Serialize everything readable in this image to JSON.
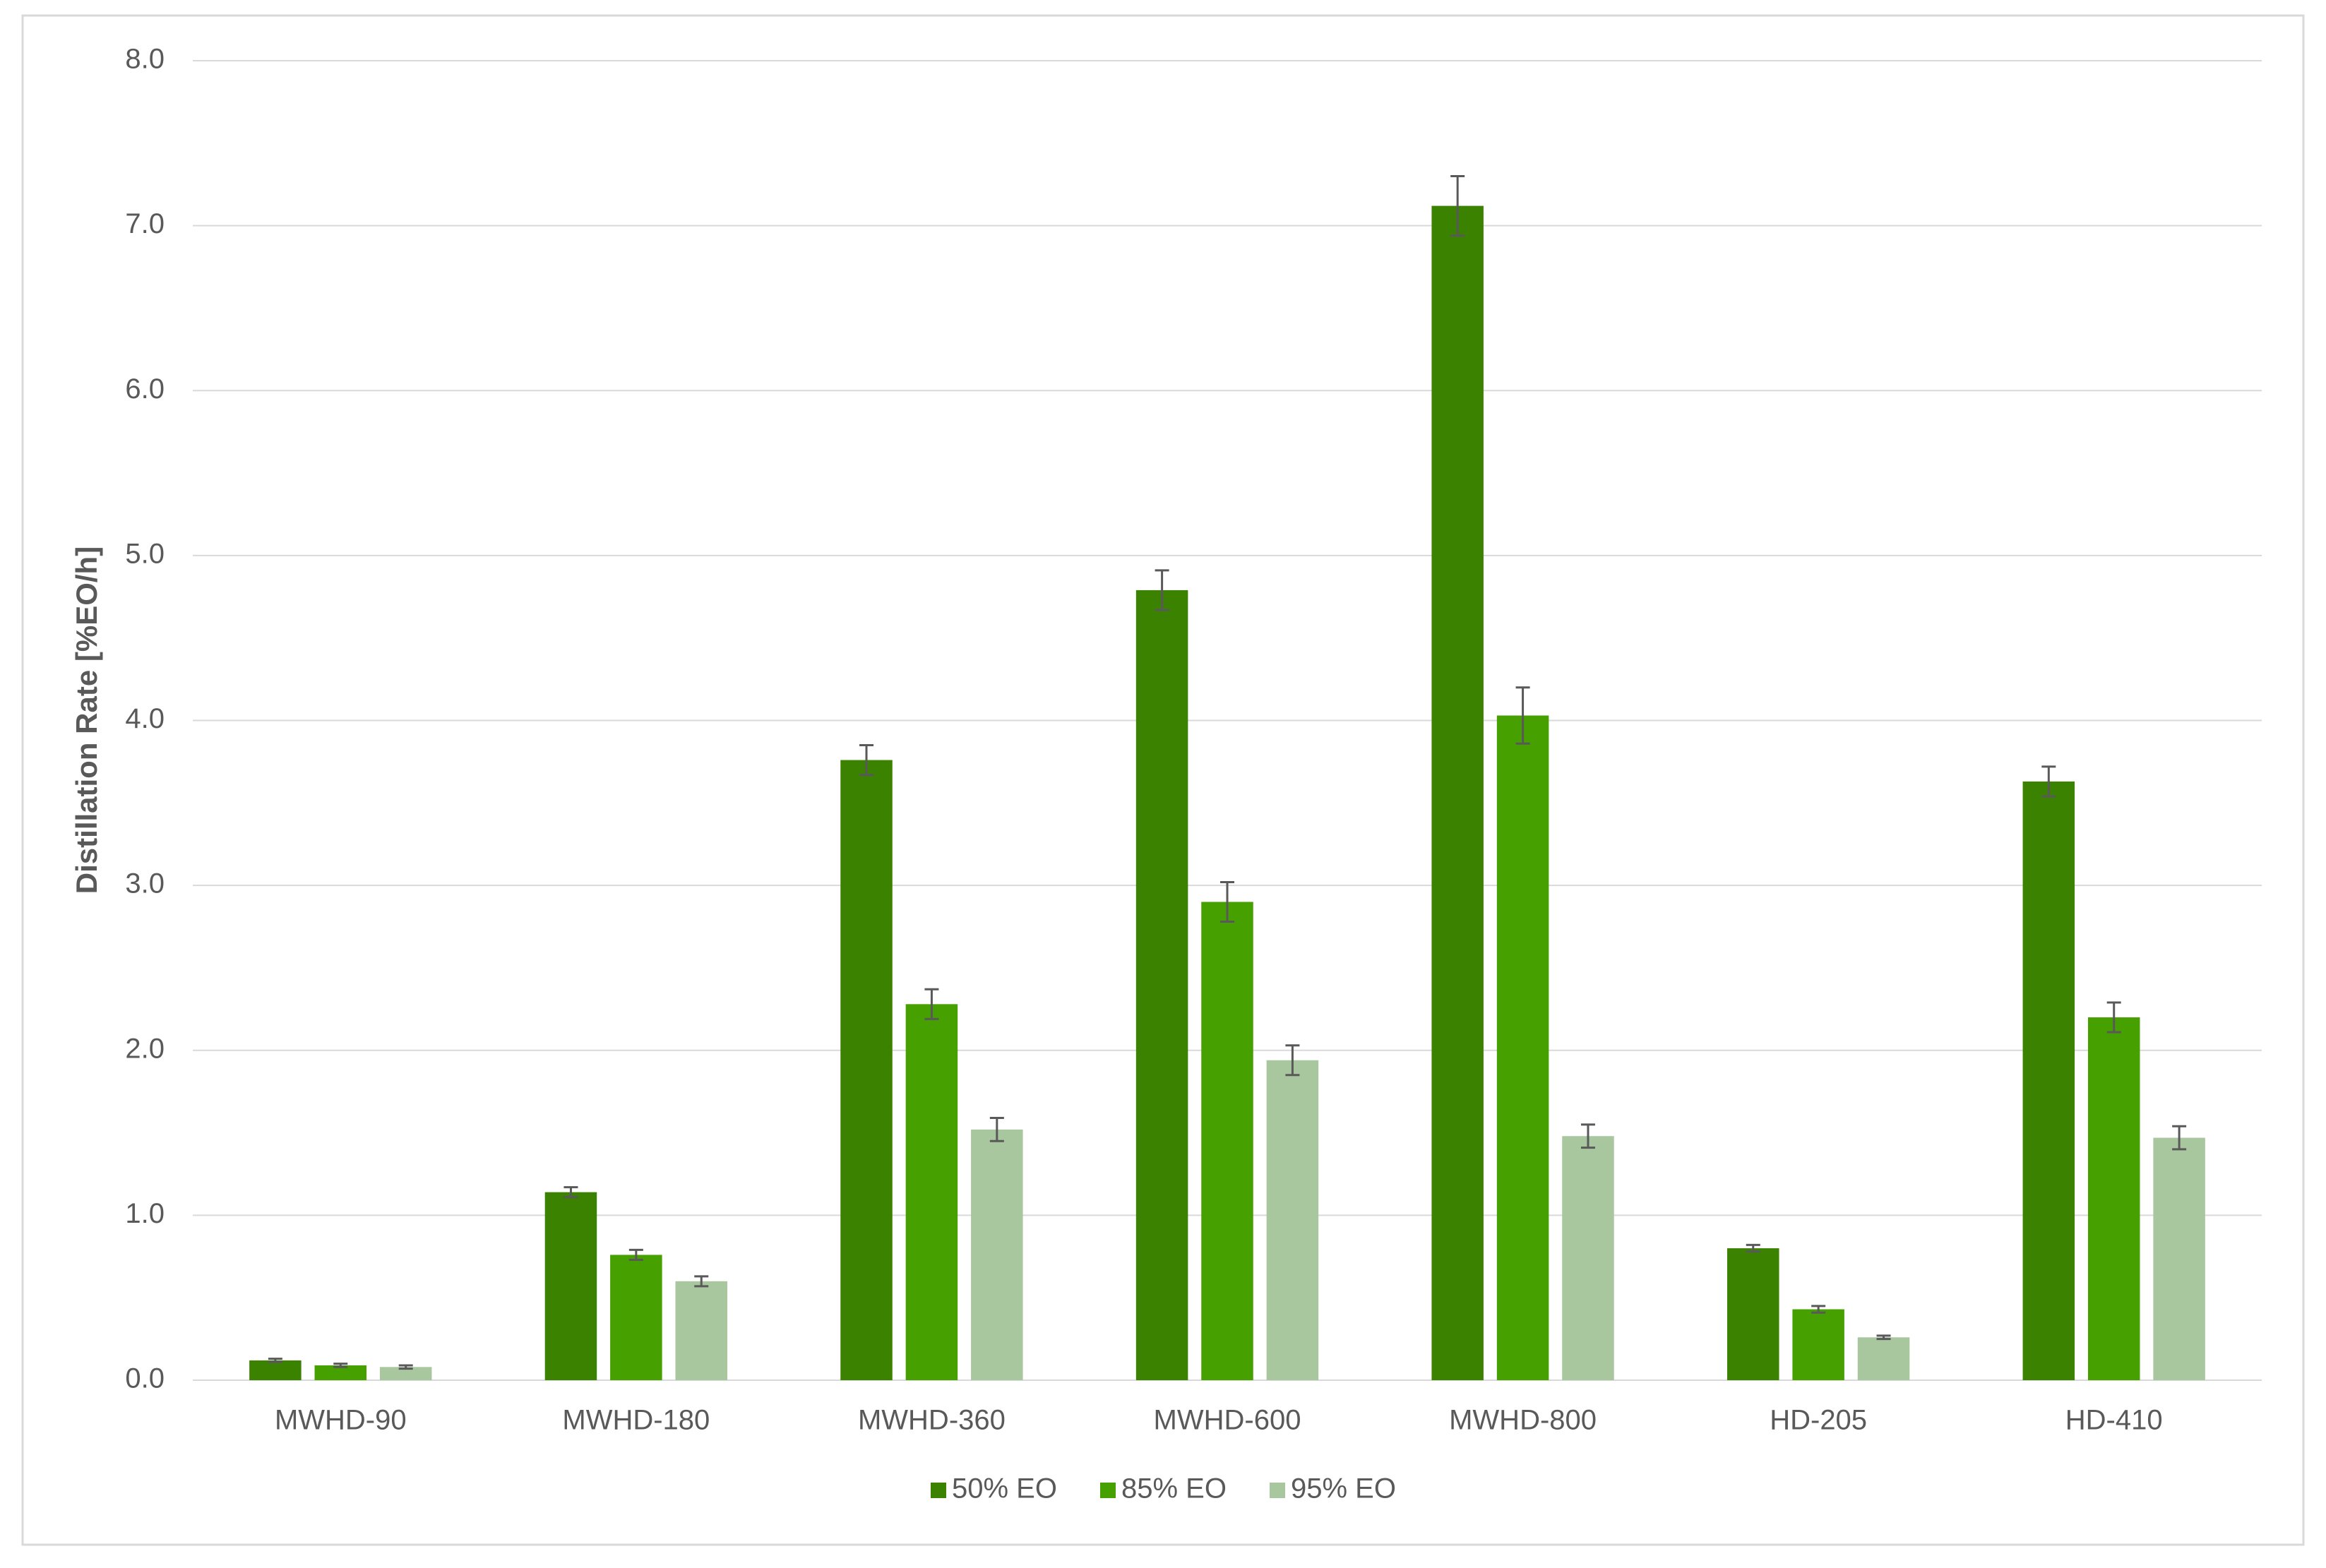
{
  "chart_data": {
    "type": "bar",
    "ylabel": "Distillation Rate [%EO/h]",
    "categories": [
      "MWHD-90",
      "MWHD-180",
      "MWHD-360",
      "MWHD-600",
      "MWHD-800",
      "HD-205",
      "HD-410"
    ],
    "series": [
      {
        "name": "50% EO",
        "color": "#3a8200",
        "values": [
          0.12,
          1.14,
          3.76,
          4.79,
          7.12,
          0.8,
          3.63
        ],
        "errors": [
          0.01,
          0.03,
          0.09,
          0.12,
          0.18,
          0.02,
          0.09
        ]
      },
      {
        "name": "85% EO",
        "color": "#46a000",
        "values": [
          0.09,
          0.76,
          2.28,
          2.9,
          4.03,
          0.43,
          2.2
        ],
        "errors": [
          0.01,
          0.03,
          0.09,
          0.12,
          0.17,
          0.02,
          0.09
        ]
      },
      {
        "name": "95% EO",
        "color": "#a9c79f",
        "values": [
          0.08,
          0.6,
          1.52,
          1.94,
          1.48,
          0.26,
          1.47
        ],
        "errors": [
          0.01,
          0.03,
          0.07,
          0.09,
          0.07,
          0.01,
          0.07
        ]
      }
    ],
    "ylim": [
      0,
      8
    ],
    "yticks": [
      {
        "value": 0,
        "label": "0.0"
      },
      {
        "value": 1,
        "label": "1.0"
      },
      {
        "value": 2,
        "label": "2.0"
      },
      {
        "value": 3,
        "label": "3.0"
      },
      {
        "value": 4,
        "label": "4.0"
      },
      {
        "value": 5,
        "label": "5.0"
      },
      {
        "value": 6,
        "label": "6.0"
      },
      {
        "value": 7,
        "label": "7.0"
      },
      {
        "value": 8,
        "label": "8.0"
      }
    ],
    "grid": true,
    "legend": "bottom"
  }
}
